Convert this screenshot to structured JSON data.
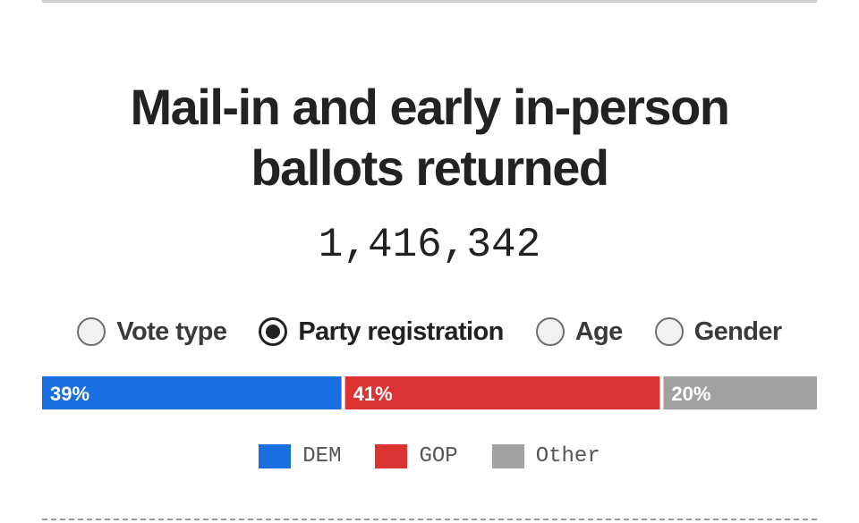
{
  "header": {
    "title_lines": [
      "Mail-in and early in-person",
      "ballots returned"
    ],
    "total": "1,416,342"
  },
  "options": [
    {
      "label": "Vote type",
      "selected": false
    },
    {
      "label": "Party registration",
      "selected": true
    },
    {
      "label": "Age",
      "selected": false
    },
    {
      "label": "Gender",
      "selected": false
    }
  ],
  "chart_data": {
    "type": "bar",
    "orientation": "horizontal-stacked",
    "title": "Mail-in and early in-person ballots returned",
    "total_ballots": 1416342,
    "categories": [
      "DEM",
      "GOP",
      "Other"
    ],
    "values": [
      39,
      41,
      20
    ],
    "unit": "%",
    "data_labels": [
      "39%",
      "41%",
      "20%"
    ],
    "colors": [
      "#1a6fe0",
      "#db3232",
      "#a2a2a2"
    ],
    "legend": {
      "placement": "bottom",
      "entries": [
        "DEM",
        "GOP",
        "Other"
      ]
    },
    "grid": false
  }
}
